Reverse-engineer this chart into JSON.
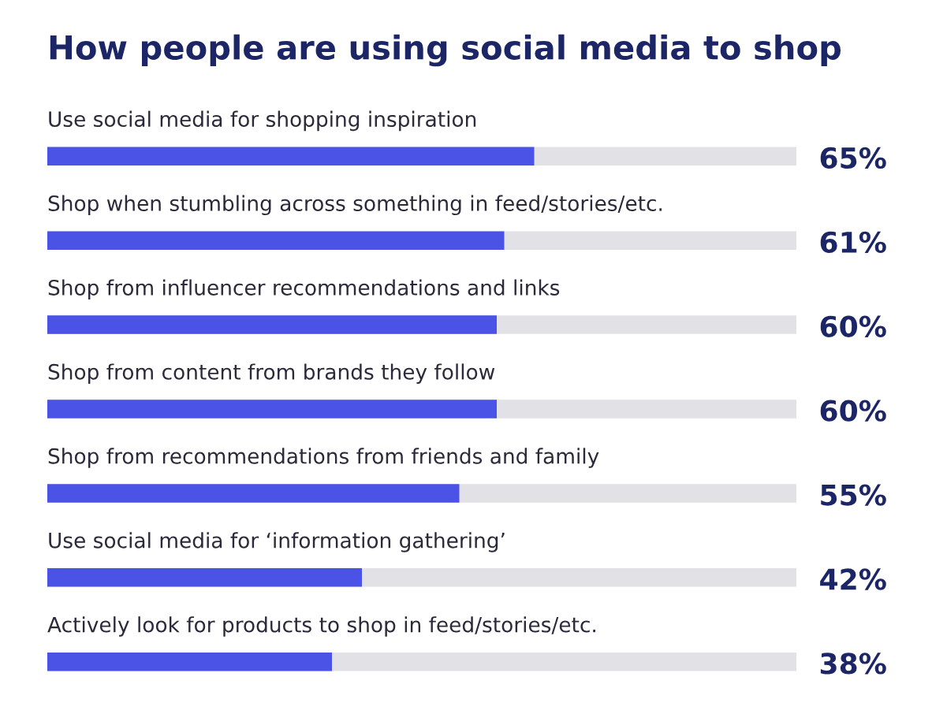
{
  "chart_data": {
    "type": "bar",
    "orientation": "horizontal",
    "title": "How people are using social media to shop",
    "categories": [
      "Use social media for shopping inspiration",
      "Shop when stumbling across something in feed/stories/etc.",
      "Shop from influencer recommendations and links",
      "Shop from content from brands they follow",
      "Shop from recommendations from friends and family",
      "Use social media for ‘information gathering’",
      "Actively look for products to shop in feed/stories/etc."
    ],
    "values": [
      65,
      61,
      60,
      60,
      55,
      42,
      38
    ],
    "value_labels": [
      "65%",
      "61%",
      "60%",
      "60%",
      "55%",
      "42%",
      "38%"
    ],
    "color": "#4b52e6",
    "xlim": [
      0,
      100
    ]
  }
}
